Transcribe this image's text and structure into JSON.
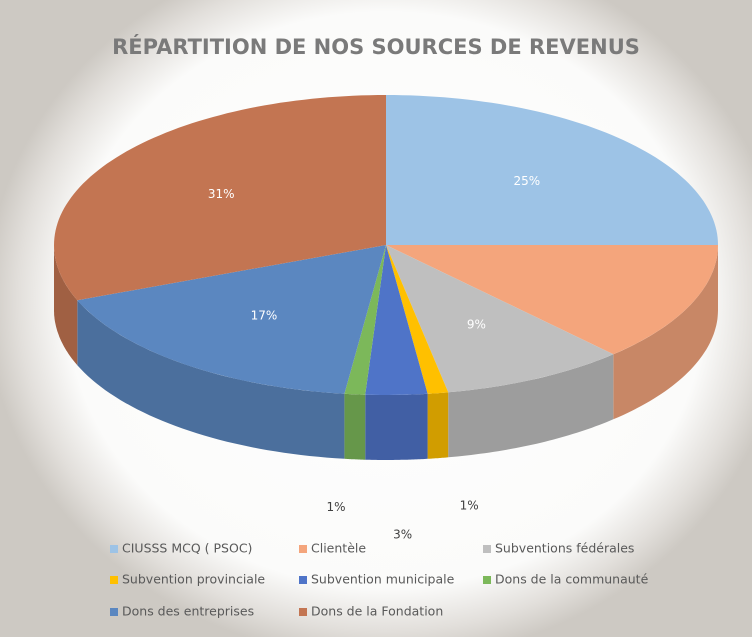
{
  "chart_data": {
    "type": "pie3d",
    "title": "RÉPARTITION DE NOS SOURCES DE REVENUS",
    "categories": [
      "CIUSSS MCQ ( PSOC)",
      "Clientèle",
      "Subventions fédérales",
      "Subvention provinciale",
      "Subvention municipale",
      "Dons de la communauté",
      "Dons des entreprises",
      "Dons de la Fondation"
    ],
    "values": [
      25,
      13,
      9,
      1,
      3,
      1,
      17,
      31
    ],
    "value_labels": [
      "25%",
      null,
      "9%",
      "1%",
      "3%",
      "1%",
      "17%",
      "31%"
    ],
    "colors": [
      "#9dc3e6",
      "#f4a57c",
      "#bfbfbf",
      "#ffc000",
      "#4f74c8",
      "#7cb85a",
      "#5b87c0",
      "#c37552"
    ],
    "legend": "bottom"
  }
}
